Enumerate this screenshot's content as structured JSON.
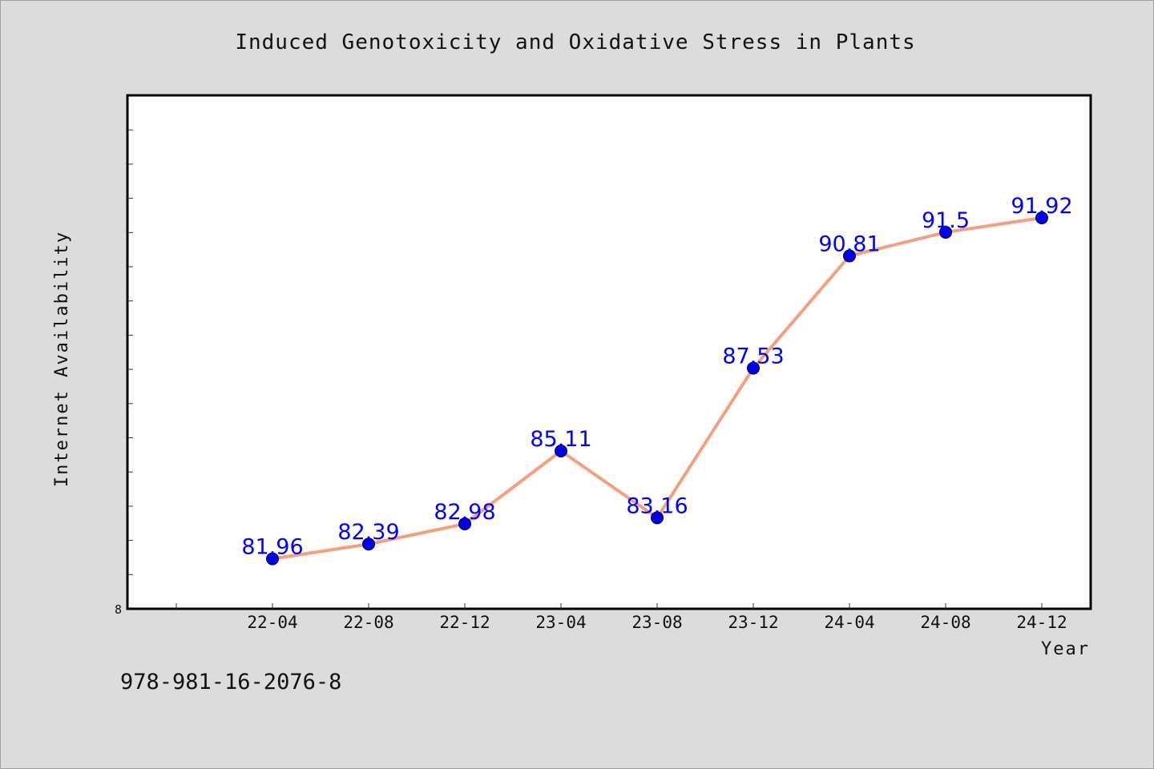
{
  "chart_data": {
    "type": "line",
    "title": "Induced Genotoxicity and Oxidative Stress in Plants",
    "xlabel": "Year",
    "ylabel": "Internet Availability",
    "categories": [
      "22-04",
      "22-08",
      "22-12",
      "23-04",
      "23-08",
      "23-12",
      "24-04",
      "24-08",
      "24-12"
    ],
    "values": [
      81.96,
      82.39,
      82.98,
      85.11,
      83.16,
      87.53,
      90.81,
      91.5,
      91.92
    ],
    "data_labels": [
      "81.96",
      "82.39",
      "82.98",
      "85.11",
      "83.16",
      "87.53",
      "90.81",
      "91.5",
      "91.92"
    ],
    "y_tick_label": "8",
    "ylim": [
      80.5,
      95.5
    ],
    "line_color": "#f4a07e",
    "marker_color": "#0000ee",
    "label_color": "#0000ff",
    "grid": false
  },
  "footer": {
    "isbn": "978-981-16-2076-8"
  }
}
